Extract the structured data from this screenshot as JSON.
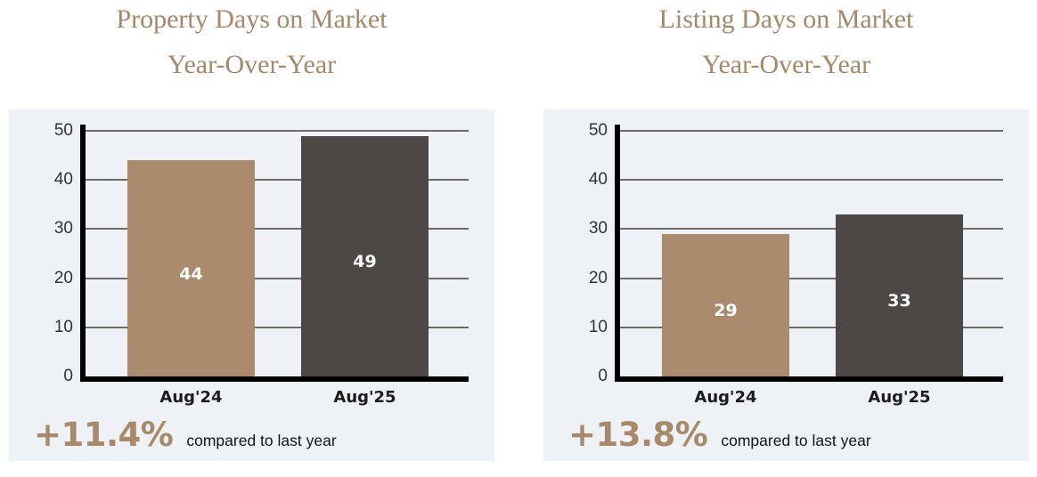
{
  "colors": {
    "page_bg": "#ffffff",
    "panel_bg": "#eef2f6",
    "title": "#a3886a",
    "grid": "#6e6b68",
    "axis": "#000000",
    "tick_label": "#333333",
    "x_label": "#1c1c1c",
    "value_label": "#ffffff",
    "change": "#a8896a",
    "caption": "#141414",
    "bar_aug24": "#aa8b6d",
    "bar_aug25": "#4b4845"
  },
  "chart_data": [
    {
      "type": "bar",
      "title": "Property Days on Market Year-Over-Year",
      "title_lines": [
        "Property Days on Market",
        "Year-Over-Year"
      ],
      "categories": [
        "Aug'24",
        "Aug'25"
      ],
      "values": [
        44,
        49
      ],
      "value_labels": [
        "44",
        "49"
      ],
      "colors": [
        "#aa8b6d",
        "#4b4845"
      ],
      "ylim": [
        0,
        50
      ],
      "yticks": [
        0,
        10,
        20,
        30,
        40,
        50
      ],
      "grid": true,
      "legend": false,
      "change_label": "+11.4%",
      "change_caption": "compared to last year"
    },
    {
      "type": "bar",
      "title": "Listing Days on Market Year-Over-Year",
      "title_lines": [
        "Listing Days on Market",
        "Year-Over-Year"
      ],
      "categories": [
        "Aug'24",
        "Aug'25"
      ],
      "values": [
        29,
        33
      ],
      "value_labels": [
        "29",
        "33"
      ],
      "colors": [
        "#aa8b6d",
        "#4b4845"
      ],
      "ylim": [
        0,
        50
      ],
      "yticks": [
        0,
        10,
        20,
        30,
        40,
        50
      ],
      "grid": true,
      "legend": false,
      "change_label": "+13.8%",
      "change_caption": "compared to last year"
    }
  ]
}
